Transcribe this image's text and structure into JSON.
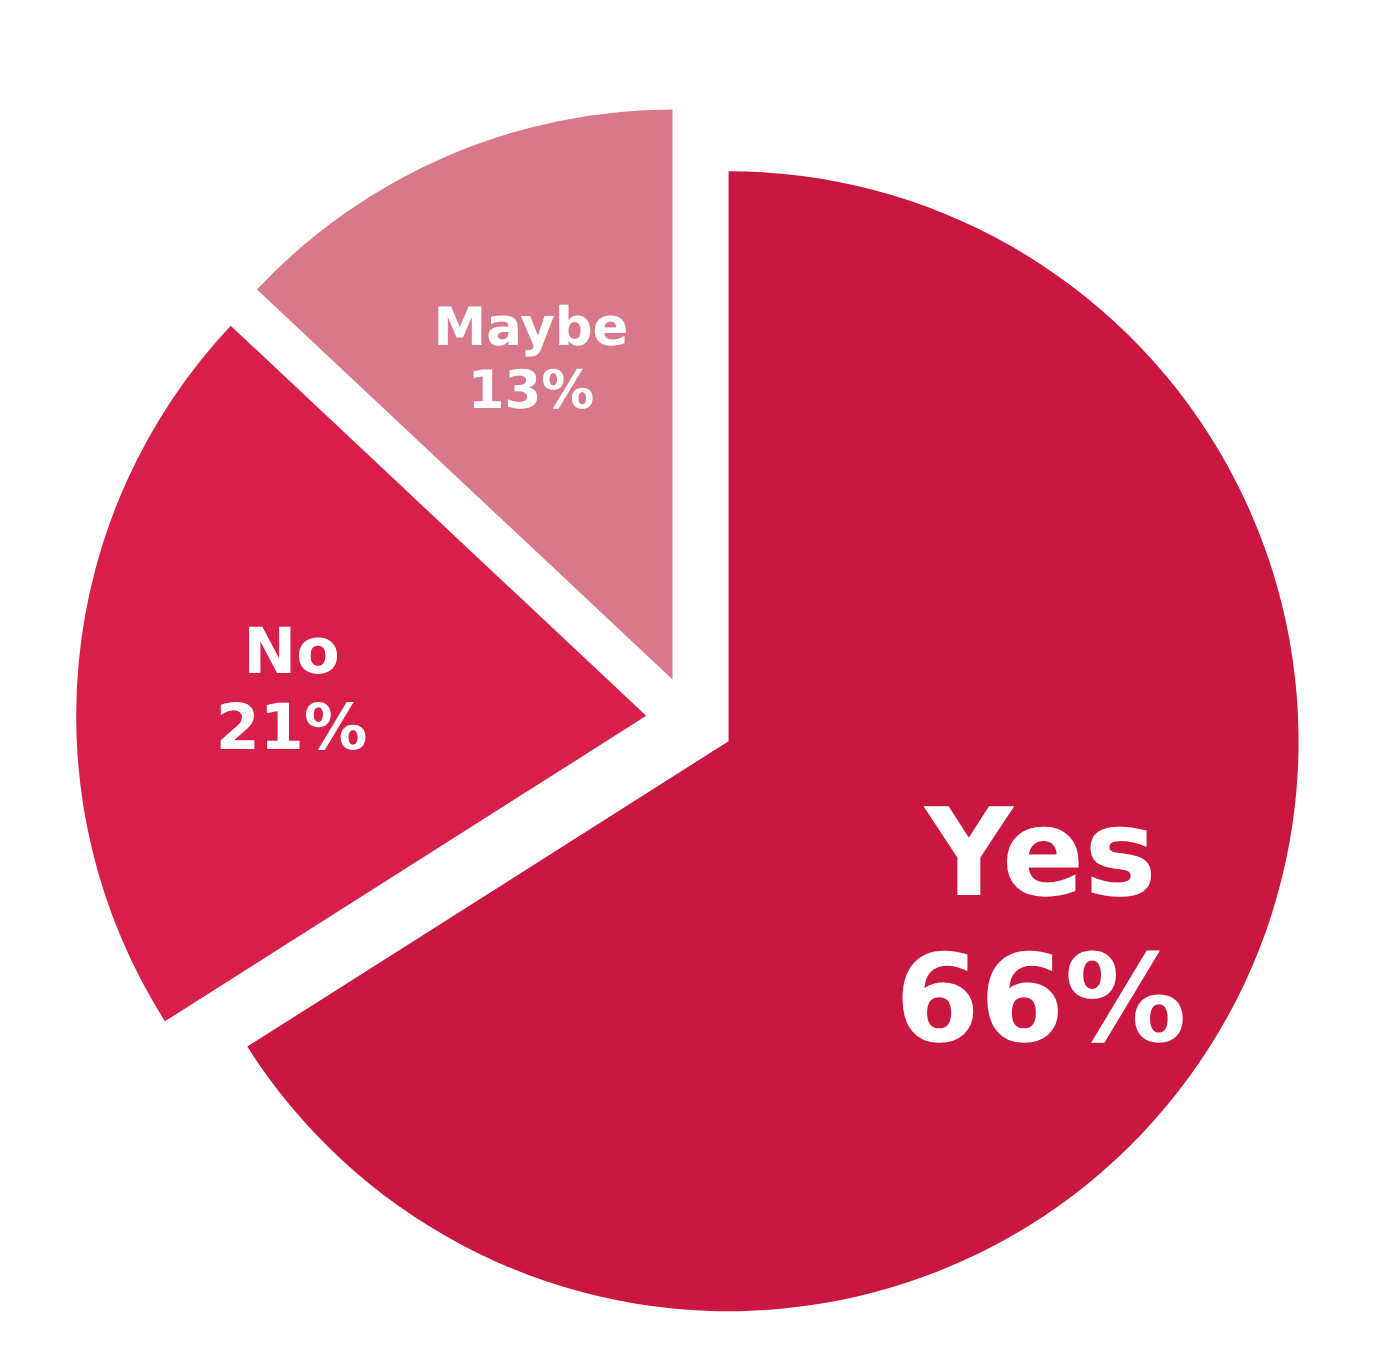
{
  "chart_data": {
    "type": "pie",
    "categories": [
      "Yes",
      "No",
      "Maybe"
    ],
    "values": [
      66,
      21,
      13
    ],
    "colors": [
      "#c9173f",
      "#d81f4a",
      "#d9788b"
    ],
    "value_labels": [
      "66%",
      "21%",
      "13%"
    ]
  }
}
